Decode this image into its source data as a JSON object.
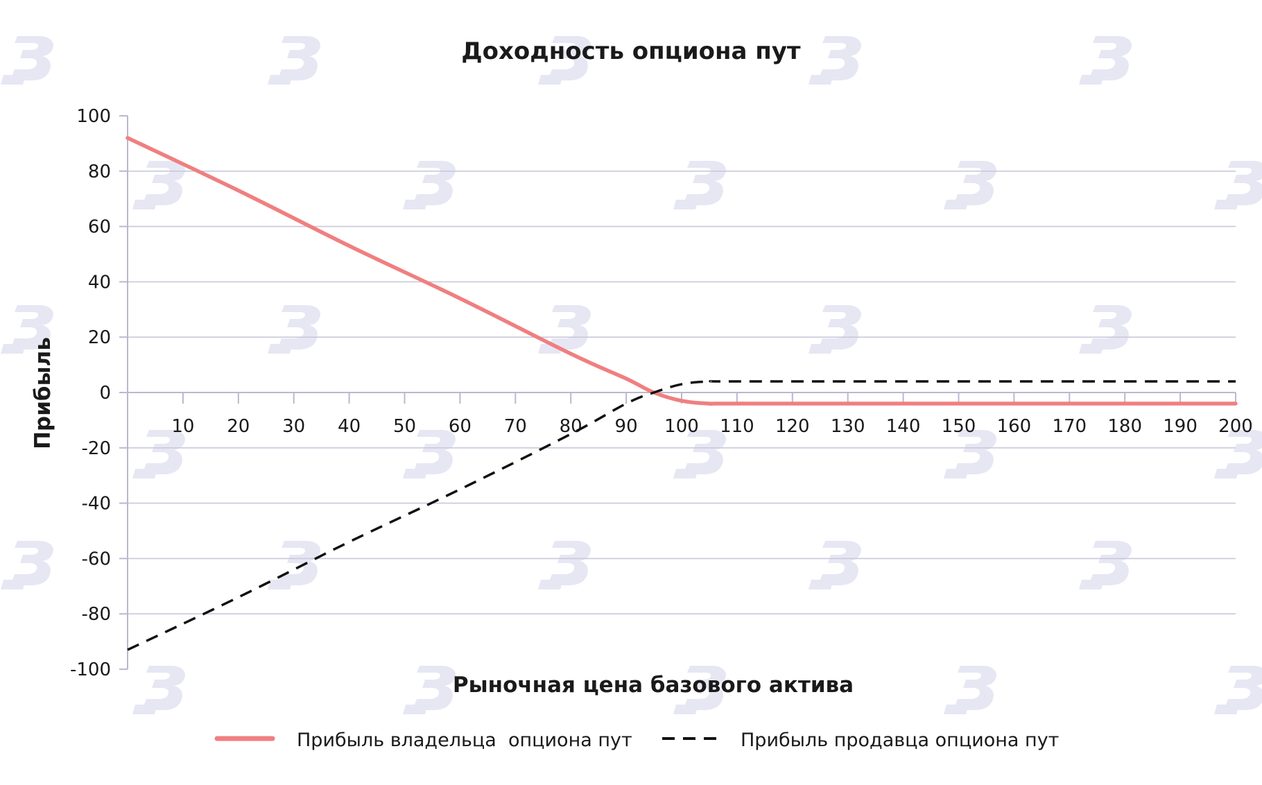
{
  "chart_data": {
    "type": "line",
    "title": "Доходность опциона пут",
    "xlabel": "Рыночная цена базового актива",
    "ylabel": "Прибыль",
    "xlim": [
      0,
      200
    ],
    "ylim": [
      -100,
      100
    ],
    "x_ticks": [
      "10",
      "20",
      "30",
      "40",
      "50",
      "60",
      "70",
      "80",
      "90",
      "100",
      "110",
      "120",
      "130",
      "140",
      "150",
      "160",
      "170",
      "180",
      "190",
      "200"
    ],
    "y_ticks": [
      "100",
      "80",
      "60",
      "40",
      "20",
      "0",
      "-20",
      "-40",
      "-60",
      "-80",
      "-100"
    ],
    "grid": true,
    "legend_position": "bottom",
    "series": [
      {
        "name": "Прибыль владельца  опциона пут",
        "color": "#f07f80",
        "style": "solid",
        "points": [
          [
            0,
            92
          ],
          [
            20,
            73
          ],
          [
            40,
            53
          ],
          [
            60,
            34
          ],
          [
            80,
            14
          ],
          [
            90,
            5
          ],
          [
            95,
            0
          ],
          [
            100,
            -3
          ],
          [
            105,
            -4
          ],
          [
            110,
            -4
          ],
          [
            150,
            -4
          ],
          [
            200,
            -4
          ]
        ]
      },
      {
        "name": "Прибыль продавца опциона пут",
        "color": "#111111",
        "style": "dashed",
        "points": [
          [
            0,
            -93
          ],
          [
            20,
            -74
          ],
          [
            40,
            -54
          ],
          [
            60,
            -35
          ],
          [
            80,
            -15
          ],
          [
            90,
            -4
          ],
          [
            95,
            0
          ],
          [
            100,
            3
          ],
          [
            105,
            4
          ],
          [
            110,
            4
          ],
          [
            150,
            4
          ],
          [
            200,
            4
          ]
        ]
      }
    ]
  }
}
